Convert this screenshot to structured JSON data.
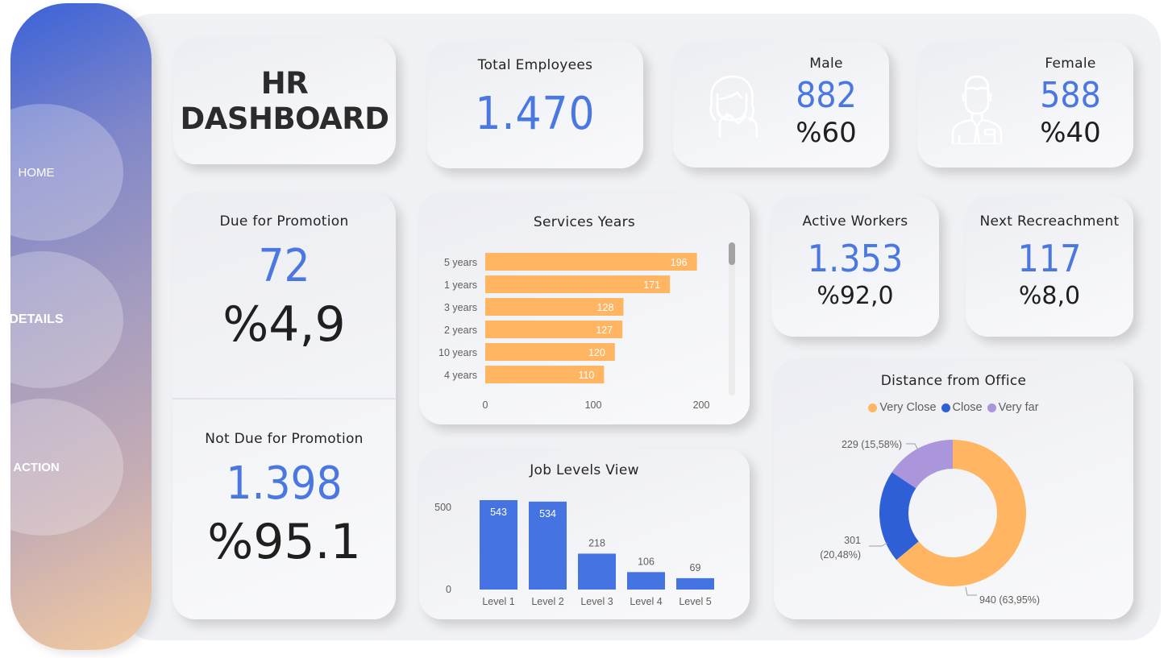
{
  "nav": {
    "items": [
      {
        "label": "HOME"
      },
      {
        "label": "DETAILS"
      },
      {
        "label": "ACTION"
      }
    ]
  },
  "header": {
    "title_line1": "HR",
    "title_line2": "DASHBOARD"
  },
  "kpis": {
    "total_employees": {
      "label": "Total Employees",
      "value": "1.470"
    },
    "male": {
      "label": "Male",
      "value": "882",
      "percent": "%60",
      "icon": "female-person-outline-icon"
    },
    "female": {
      "label": "Female",
      "value": "588",
      "percent": "%40",
      "icon": "male-person-suit-outline-icon"
    },
    "due_for_promotion": {
      "label": "Due for Promotion",
      "value": "72",
      "percent": "%4,9"
    },
    "not_due_for_promotion": {
      "label": "Not Due for Promotion",
      "value": "1.398",
      "percent": "%95.1"
    },
    "active_workers": {
      "label": "Active Workers",
      "value": "1.353",
      "percent": "%92,0"
    },
    "next_recreachment": {
      "label": "Next Recreachment",
      "value": "117",
      "percent": "%8,0"
    }
  },
  "colors": {
    "accent_blue": "#4a78e0",
    "bar_orange": "#ffb562",
    "bar_blue": "#4573e2",
    "donut_very_close": "#ffb562",
    "donut_close": "#2f5fd6",
    "donut_very_far": "#ab95db"
  },
  "chart_data": [
    {
      "id": "services_years",
      "type": "bar",
      "orientation": "horizontal",
      "title": "Services Years",
      "categories": [
        "5 years",
        "1 years",
        "3 years",
        "2 years",
        "10 years",
        "4 years"
      ],
      "values": [
        196,
        171,
        128,
        127,
        120,
        110
      ],
      "xlim": [
        0,
        200
      ],
      "xticks": [
        "0",
        "100",
        "200"
      ],
      "data_labels": [
        "196",
        "171",
        "128",
        "127",
        "120",
        "110"
      ],
      "grid": false,
      "scrollable": true
    },
    {
      "id": "job_levels",
      "type": "bar",
      "orientation": "vertical",
      "title": "Job Levels View",
      "categories": [
        "Level 1",
        "Level 2",
        "Level 3",
        "Level 4",
        "Level 5"
      ],
      "values": [
        543,
        534,
        218,
        106,
        69
      ],
      "ylim": [
        0,
        543
      ],
      "yticks": [
        "0",
        "500"
      ],
      "data_labels": [
        "543",
        "534",
        "218",
        "106",
        "69"
      ],
      "grid": false
    },
    {
      "id": "distance_from_office",
      "type": "pie",
      "variant": "donut",
      "title": "Distance from Office",
      "legend": [
        "Very Close",
        "Close",
        "Very far"
      ],
      "legend_position": "top-center",
      "slices": [
        {
          "label": "Very Close",
          "value": 940,
          "percent": "63,95%",
          "data_label": "940 (63,95%)"
        },
        {
          "label": "Close",
          "value": 301,
          "percent": "20,48%",
          "data_label_line1": "301",
          "data_label_line2": "(20,48%)"
        },
        {
          "label": "Very far",
          "value": 229,
          "percent": "15,58%",
          "data_label": "229 (15,58%)"
        }
      ]
    }
  ]
}
